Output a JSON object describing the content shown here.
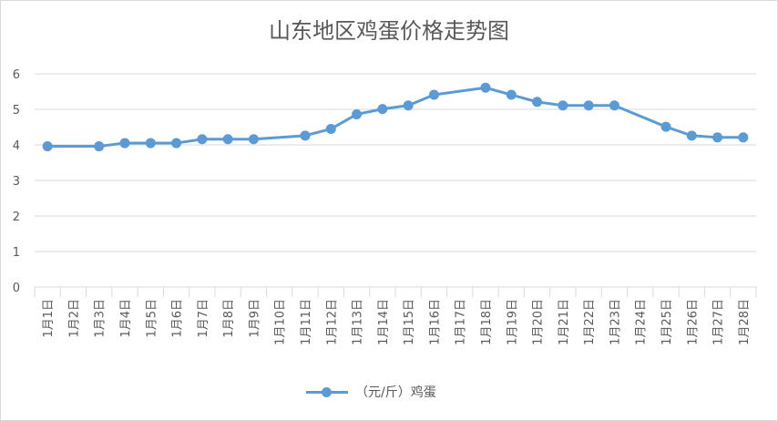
{
  "chart_data": {
    "type": "line",
    "title": "山东地区鸡蛋价格走势图",
    "categories": [
      "1月1日",
      "1月2日",
      "1月3日",
      "1月4日",
      "1月5日",
      "1月6日",
      "1月7日",
      "1月8日",
      "1月9日",
      "1月10日",
      "1月11日",
      "1月12日",
      "1月13日",
      "1月14日",
      "1月15日",
      "1月16日",
      "1月17日",
      "1月18日",
      "1月19日",
      "1月20日",
      "1月21日",
      "1月22日",
      "1月23日",
      "1月24日",
      "1月25日",
      "1月26日",
      "1月27日",
      "1月28日"
    ],
    "series": [
      {
        "name": "（元/斤）鸡蛋",
        "color": "#5b9bd5",
        "values": [
          3.96,
          null,
          3.96,
          4.05,
          4.05,
          4.05,
          4.16,
          4.16,
          4.16,
          null,
          4.26,
          4.45,
          4.86,
          5.01,
          5.11,
          5.41,
          null,
          5.61,
          5.41,
          5.21,
          5.11,
          5.11,
          5.11,
          null,
          4.51,
          4.26,
          4.21,
          4.21
        ]
      }
    ],
    "ylim": [
      0,
      6
    ],
    "yticks": [
      0,
      1,
      2,
      3,
      4,
      5,
      6
    ],
    "grid": true,
    "legend_position": "bottom"
  }
}
